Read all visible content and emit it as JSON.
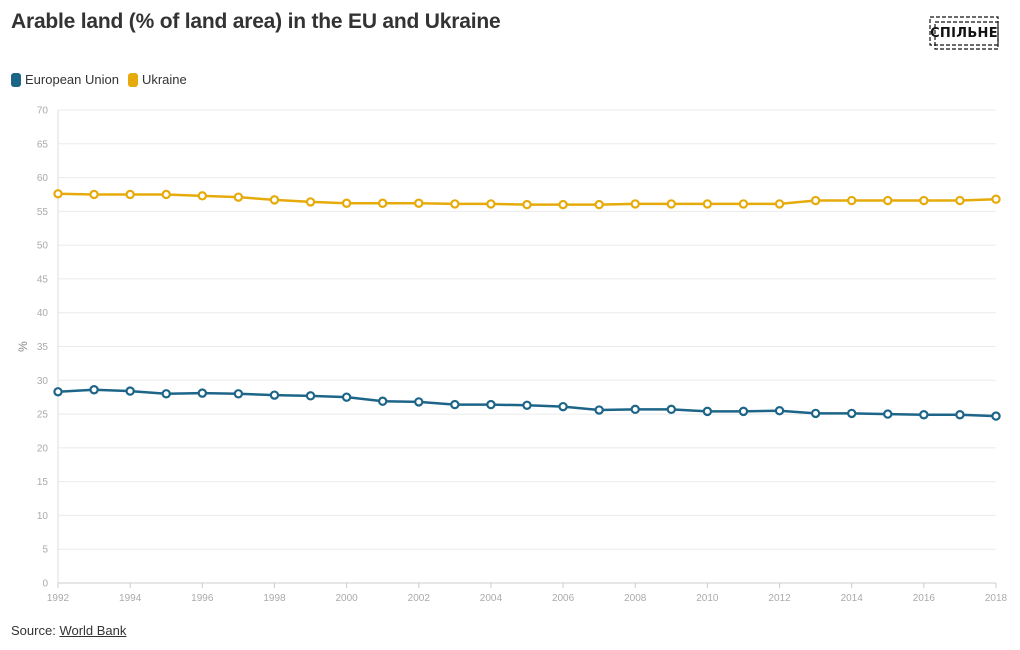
{
  "title": "Arable land (% of land area) in the EU and Ukraine",
  "logo": {
    "text": "СПІЛЬНЕ"
  },
  "source": {
    "label": "Source:",
    "link_text": "World Bank"
  },
  "colors": {
    "eu": "#1d6588",
    "ukraine": "#e6ab0a"
  },
  "chart_data": {
    "type": "line",
    "ylabel": "%",
    "ylim": [
      0,
      70
    ],
    "yticks": [
      0,
      5,
      10,
      15,
      20,
      25,
      30,
      35,
      40,
      45,
      50,
      55,
      60,
      65,
      70
    ],
    "xlim": [
      1992,
      2018
    ],
    "xticks": [
      1992,
      1994,
      1996,
      1998,
      2000,
      2002,
      2004,
      2006,
      2008,
      2010,
      2012,
      2014,
      2016,
      2018
    ],
    "grid": true,
    "legend_position": "top-left",
    "x": [
      1992,
      1993,
      1994,
      1995,
      1996,
      1997,
      1998,
      1999,
      2000,
      2001,
      2002,
      2003,
      2004,
      2005,
      2006,
      2007,
      2008,
      2009,
      2010,
      2011,
      2012,
      2013,
      2014,
      2015,
      2016,
      2017,
      2018
    ],
    "series": [
      {
        "name": "European Union",
        "color": "#1d6588",
        "values": [
          28.3,
          28.6,
          28.4,
          28.0,
          28.1,
          28.0,
          27.8,
          27.7,
          27.5,
          26.9,
          26.8,
          26.4,
          26.4,
          26.3,
          26.1,
          25.6,
          25.7,
          25.7,
          25.4,
          25.4,
          25.5,
          25.1,
          25.1,
          25.0,
          24.9,
          24.9,
          24.7
        ]
      },
      {
        "name": "Ukraine",
        "color": "#e6ab0a",
        "values": [
          57.6,
          57.5,
          57.5,
          57.5,
          57.3,
          57.1,
          56.7,
          56.4,
          56.2,
          56.2,
          56.2,
          56.1,
          56.1,
          56.0,
          56.0,
          56.0,
          56.1,
          56.1,
          56.1,
          56.1,
          56.1,
          56.6,
          56.6,
          56.6,
          56.6,
          56.6,
          56.8
        ]
      }
    ]
  }
}
